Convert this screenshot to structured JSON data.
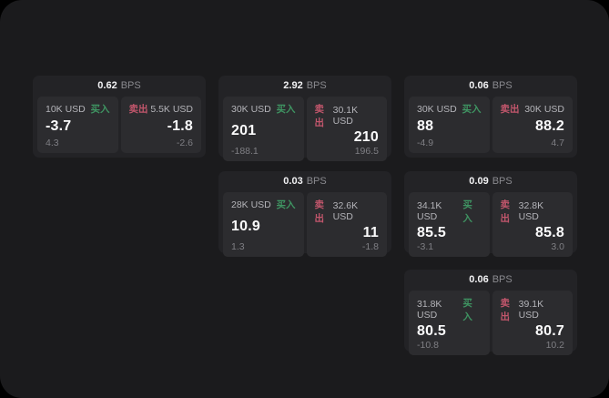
{
  "labels": {
    "bps_unit": "BPS",
    "buy": "买入",
    "sell": "卖出"
  },
  "colors": {
    "buy_text": "#3f9462",
    "sell_text": "#c2566c",
    "screen_background": "#1b1b1d",
    "card_background": "#232326",
    "panel_background": "#2c2c2f"
  },
  "cards": [
    {
      "row": 1,
      "col": 1,
      "bps": "0.62",
      "buy": {
        "size": "10K USD",
        "value": "-3.7",
        "delta": "4.3"
      },
      "sell": {
        "size": "5.5K USD",
        "value": "-1.8",
        "delta": "-2.6"
      }
    },
    {
      "row": 1,
      "col": 2,
      "bps": "2.92",
      "buy": {
        "size": "30K USD",
        "value": "201",
        "delta": "-188.1"
      },
      "sell": {
        "size": "30.1K USD",
        "value": "210",
        "delta": "196.5"
      }
    },
    {
      "row": 1,
      "col": 3,
      "bps": "0.06",
      "buy": {
        "size": "30K USD",
        "value": "88",
        "delta": "-4.9"
      },
      "sell": {
        "size": "30K USD",
        "value": "88.2",
        "delta": "4.7"
      }
    },
    {
      "row": 2,
      "col": 2,
      "bps": "0.03",
      "buy": {
        "size": "28K USD",
        "value": "10.9",
        "delta": "1.3"
      },
      "sell": {
        "size": "32.6K USD",
        "value": "11",
        "delta": "-1.8"
      }
    },
    {
      "row": 2,
      "col": 3,
      "bps": "0.09",
      "buy": {
        "size": "34.1K USD",
        "value": "85.5",
        "delta": "-3.1"
      },
      "sell": {
        "size": "32.8K USD",
        "value": "85.8",
        "delta": "3.0"
      }
    },
    {
      "row": 3,
      "col": 3,
      "bps": "0.06",
      "buy": {
        "size": "31.8K USD",
        "value": "80.5",
        "delta": "-10.8"
      },
      "sell": {
        "size": "39.1K USD",
        "value": "80.7",
        "delta": "10.2"
      }
    }
  ]
}
